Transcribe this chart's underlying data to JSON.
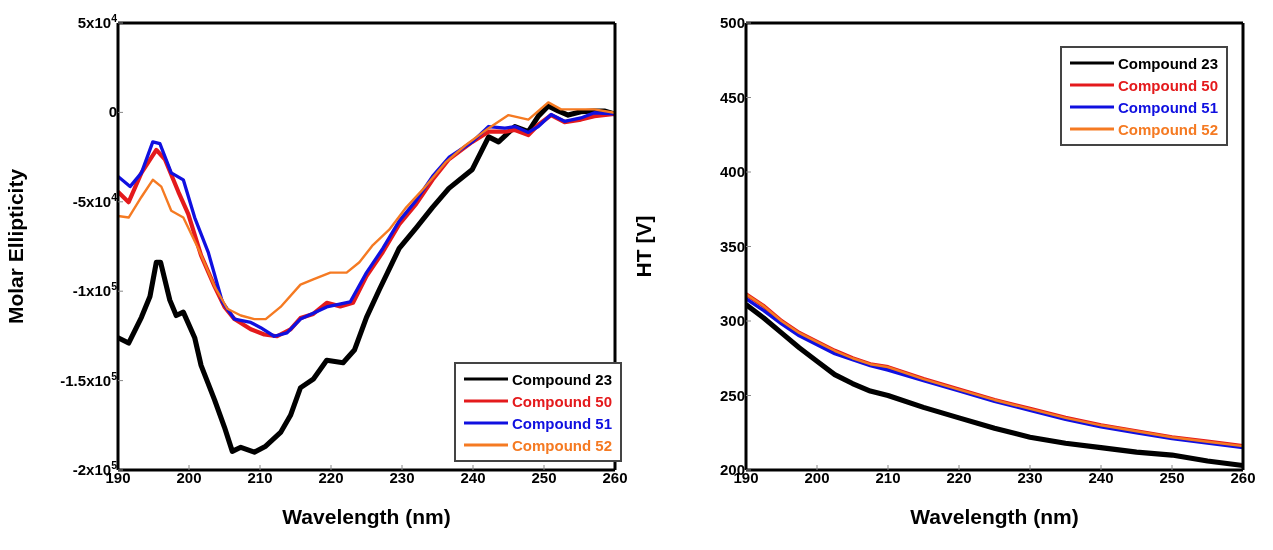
{
  "chart_data": [
    {
      "type": "line",
      "xlabel": "Wavelength (nm)",
      "ylabel": "Molar Ellipticity",
      "xlim": [
        190,
        260
      ],
      "xticks": [
        190,
        200,
        210,
        220,
        230,
        240,
        250,
        260
      ],
      "ylim": [
        -200000,
        50000
      ],
      "yticks": [
        {
          "value": -200000,
          "label": "-2x10$^{5}$"
        },
        {
          "value": -150000,
          "label": "-1.5x10$^{5}$"
        },
        {
          "value": -100000,
          "label": "-1x10$^{5}$"
        },
        {
          "value": -50000,
          "label": "-5x10$^{4}$"
        },
        0,
        {
          "value": 50000,
          "label": "5x10$^{4}$"
        }
      ],
      "legend": "bottom right",
      "marker": "none",
      "line_style": "solid",
      "series": [
        {
          "name": "Compound 23",
          "color": "#000000",
          "x": [
            190,
            191.5,
            193.3,
            194.5,
            195.4,
            196,
            197.3,
            198.2,
            199.2,
            200.8,
            201.7,
            203.6,
            205,
            206.1,
            207.3,
            209.2,
            210.8,
            212.9,
            214.3,
            215.7,
            217.5,
            219.4,
            221.7,
            223.3,
            225,
            226.8,
            229.6,
            232,
            234.3,
            236.6,
            239.9,
            242.2,
            243.6,
            245.9,
            247.8,
            249.2,
            250.6,
            252,
            253.4,
            255.2,
            257.1,
            258.5,
            259.9
          ],
          "values": [
            -126000,
            -129000,
            -114600,
            -103000,
            -83800,
            -83800,
            -105000,
            -113600,
            -111700,
            -126000,
            -141500,
            -160800,
            -176100,
            -189600,
            -187300,
            -190000,
            -186700,
            -179000,
            -169400,
            -154000,
            -149200,
            -138600,
            -140000,
            -132900,
            -114600,
            -99200,
            -76100,
            -64600,
            -53100,
            -42500,
            -31900,
            -13700,
            -16500,
            -7900,
            -10800,
            -2100,
            3600,
            800,
            -1500,
            400,
            800,
            800,
            -800
          ]
        },
        {
          "name": "Compound 50",
          "color": "#e41a1c",
          "x": [
            190,
            191.5,
            193.3,
            195.4,
            196.6,
            198.5,
            199.9,
            201.7,
            203.6,
            205,
            206.4,
            208.7,
            210.6,
            212.4,
            214.3,
            215.7,
            217.5,
            219.4,
            221.3,
            223.1,
            225,
            227.3,
            229.6,
            232,
            234.3,
            236.6,
            239.9,
            242.2,
            244.5,
            245.9,
            247.8,
            249.2,
            251,
            252.9,
            255.2,
            257.1,
            259.9
          ],
          "values": [
            -44400,
            -50200,
            -33800,
            -21000,
            -26200,
            -44400,
            -56900,
            -80000,
            -97300,
            -108800,
            -115600,
            -121300,
            -124200,
            -125200,
            -121300,
            -115000,
            -112700,
            -106500,
            -108500,
            -106500,
            -91500,
            -78100,
            -62700,
            -51200,
            -37700,
            -26200,
            -16500,
            -10800,
            -10800,
            -9800,
            -12700,
            -6900,
            -1500,
            -5400,
            -4000,
            -2100,
            -800
          ]
        },
        {
          "name": "Compound 51",
          "color": "#1010e0",
          "x": [
            190,
            191.7,
            193.3,
            194.9,
            195.9,
            197.5,
            199.2,
            200.8,
            202.7,
            204.7,
            206.4,
            208.7,
            210.1,
            212,
            213.8,
            215.7,
            217.5,
            219.4,
            222.7,
            225,
            227.3,
            229.6,
            232,
            234.3,
            236.6,
            239.9,
            242.2,
            244.5,
            245.9,
            247.8,
            249.2,
            251,
            252.9,
            255.2,
            257.1,
            259.9
          ],
          "values": [
            -35800,
            -41500,
            -33800,
            -16500,
            -17500,
            -33800,
            -37700,
            -58800,
            -78100,
            -106000,
            -115600,
            -117500,
            -120400,
            -125200,
            -123300,
            -115600,
            -112300,
            -108800,
            -106000,
            -89600,
            -76100,
            -60800,
            -49200,
            -35800,
            -25200,
            -16500,
            -7900,
            -8800,
            -7900,
            -11200,
            -7900,
            -1200,
            -5000,
            -3100,
            -200,
            -800
          ]
        },
        {
          "name": "Compound 52",
          "color": "#f57a22",
          "x": [
            190,
            191.5,
            193.3,
            194.9,
            196.1,
            197.5,
            199.2,
            201.3,
            203.6,
            205.4,
            207.3,
            209.2,
            210.8,
            212.9,
            215.7,
            217.5,
            219.9,
            222.2,
            224,
            225.9,
            228.2,
            230.6,
            233.3,
            236.1,
            238.9,
            242.2,
            245,
            247.8,
            250.6,
            252.4,
            254.7,
            257.1,
            259.9
          ],
          "values": [
            -57900,
            -58800,
            -47300,
            -37700,
            -41500,
            -55000,
            -58800,
            -76100,
            -97300,
            -109800,
            -113600,
            -115600,
            -115600,
            -108800,
            -96300,
            -93400,
            -89600,
            -89600,
            -83800,
            -74200,
            -65600,
            -53100,
            -41500,
            -28100,
            -18500,
            -8800,
            -1500,
            -4000,
            5600,
            1700,
            1700,
            1700,
            -200
          ]
        }
      ]
    },
    {
      "type": "line",
      "xlabel": "Wavelength (nm)",
      "ylabel": "HT [V]",
      "xlim": [
        190,
        260
      ],
      "xticks": [
        190,
        200,
        210,
        220,
        230,
        240,
        250,
        260
      ],
      "ylim": [
        200,
        500
      ],
      "yticks": [
        200,
        250,
        300,
        350,
        400,
        450,
        500
      ],
      "legend": "top right",
      "marker": "none",
      "line_style": "solid",
      "series": [
        {
          "name": "Compound 23",
          "color": "#000000",
          "x": [
            190,
            192.5,
            195,
            197.5,
            200,
            202.5,
            205,
            207.5,
            210,
            215,
            220,
            225,
            230,
            235,
            240,
            245,
            250,
            255,
            260
          ],
          "values": [
            311,
            302,
            292,
            282,
            273,
            264,
            258,
            253,
            250,
            242,
            235,
            228,
            222,
            218,
            215,
            212,
            210,
            206,
            203
          ]
        },
        {
          "name": "Compound 50",
          "color": "#e41a1c",
          "x": [
            190,
            192.5,
            195,
            197.5,
            200,
            202.5,
            205,
            207.5,
            210,
            215,
            220,
            225,
            230,
            235,
            240,
            245,
            250,
            255,
            260
          ],
          "values": [
            318,
            310,
            300,
            292,
            286,
            280,
            275,
            271,
            269,
            261,
            254,
            247,
            241,
            235,
            230,
            226,
            222,
            219,
            216
          ]
        },
        {
          "name": "Compound 51",
          "color": "#1010e0",
          "x": [
            190,
            192.5,
            195,
            197.5,
            200,
            202.5,
            205,
            207.5,
            210,
            215,
            220,
            225,
            230,
            235,
            240,
            245,
            250,
            255,
            260
          ],
          "values": [
            315,
            307,
            298,
            290,
            284,
            278,
            274,
            270,
            267,
            260,
            253,
            246,
            240,
            234,
            229,
            225,
            221,
            218,
            215
          ]
        },
        {
          "name": "Compound 52",
          "color": "#f57a22",
          "x": [
            190,
            192.5,
            195,
            197.5,
            200,
            202.5,
            205,
            207.5,
            210,
            215,
            220,
            225,
            230,
            235,
            240,
            245,
            250,
            255,
            260
          ],
          "values": [
            318,
            310,
            300,
            292,
            286,
            280,
            275,
            271,
            269,
            261,
            254,
            247,
            241,
            235,
            230,
            226,
            222,
            219,
            216
          ]
        }
      ]
    }
  ]
}
